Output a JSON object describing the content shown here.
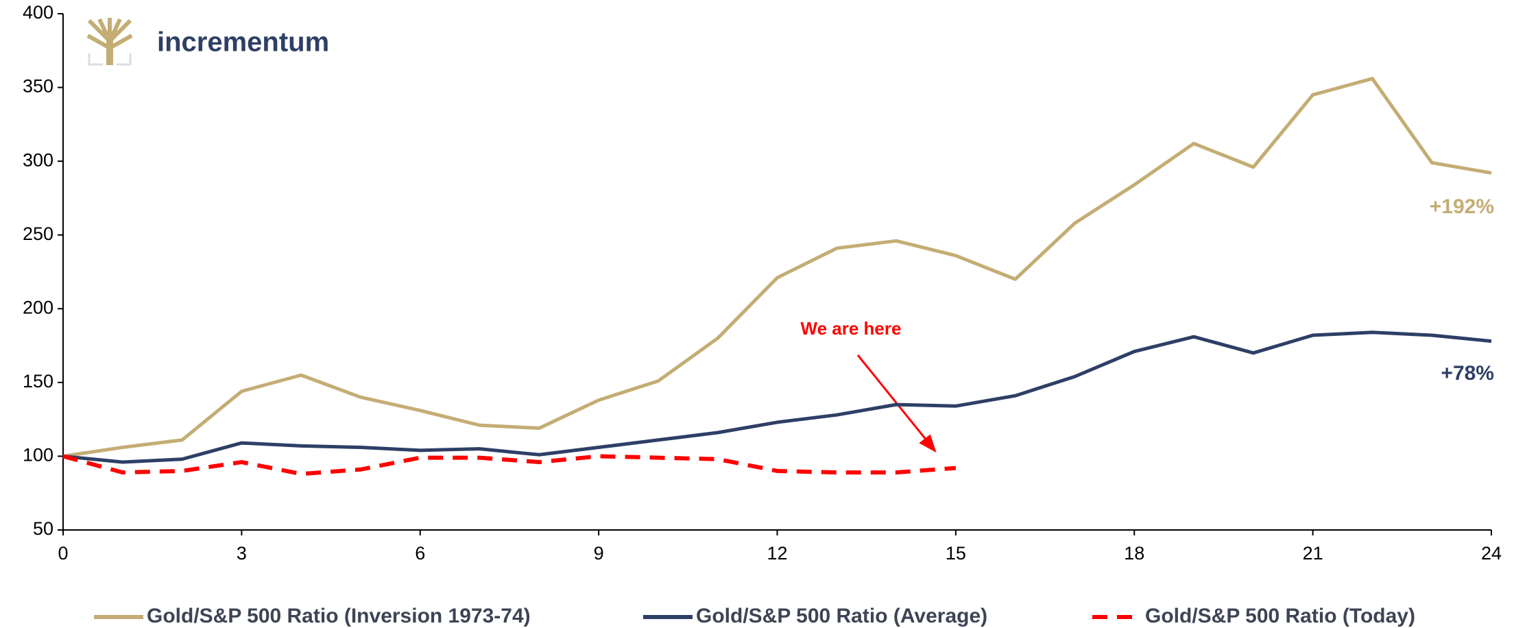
{
  "logo": "incrementum",
  "chart_data": {
    "type": "line",
    "x": [
      0,
      1,
      2,
      3,
      4,
      5,
      6,
      7,
      8,
      9,
      10,
      11,
      12,
      13,
      14,
      15,
      16,
      17,
      18,
      19,
      20,
      21,
      22,
      23,
      24
    ],
    "series": [
      {
        "name": "Gold/S&P 500 Ratio (Inversion 1973-74)",
        "color": "#c4ad74",
        "dash": false,
        "values": [
          100,
          106,
          111,
          144,
          155,
          140,
          131,
          121,
          119,
          138,
          151,
          180,
          221,
          241,
          246,
          236,
          220,
          258,
          284,
          312,
          296,
          345,
          356,
          299,
          292
        ]
      },
      {
        "name": "Gold/S&P 500 Ratio (Average)",
        "color": "#2e3f66",
        "dash": false,
        "values": [
          100,
          96,
          98,
          109,
          107,
          106,
          104,
          105,
          101,
          106,
          111,
          116,
          123,
          128,
          135,
          134,
          141,
          154,
          171,
          181,
          170,
          182,
          184,
          182,
          178
        ]
      },
      {
        "name": "Gold/S&P 500 Ratio (Today)",
        "color": "#ff0000",
        "dash": true,
        "values": [
          100,
          89,
          90,
          96,
          88,
          91,
          99,
          99,
          96,
          100,
          99,
          98,
          90,
          89,
          89,
          92,
          null,
          null,
          null,
          null,
          null,
          null,
          null,
          null,
          null
        ]
      }
    ],
    "xlim": [
      0,
      24
    ],
    "xticks": [
      0,
      3,
      6,
      9,
      12,
      15,
      18,
      21,
      24
    ],
    "ylim": [
      50,
      400
    ],
    "yticks": [
      50,
      100,
      150,
      200,
      250,
      300,
      350,
      400
    ],
    "grid": false,
    "annotations": [
      "We are here",
      "+192%",
      "+78%"
    ]
  }
}
